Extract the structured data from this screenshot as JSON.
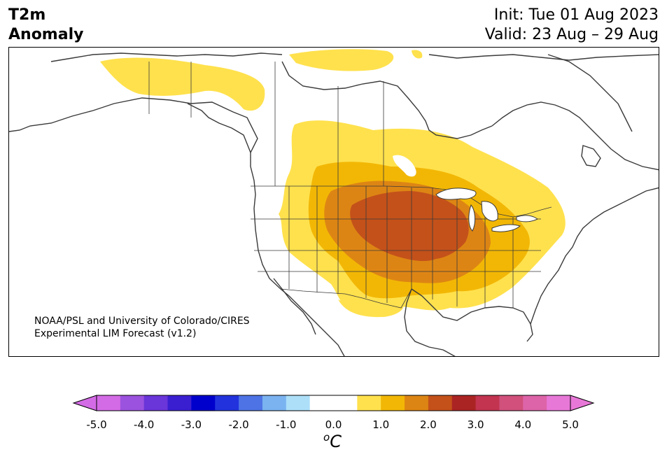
{
  "title": {
    "line1": "T2m",
    "line2": "Anomaly"
  },
  "subtitle": {
    "init": "Init: Tue 01 Aug 2023",
    "valid": "Valid: 23 Aug – 29 Aug"
  },
  "credit": {
    "line1": "NOAA/PSL and University of Colorado/CIRES",
    "line2": "Experimental LIM Forecast (v1.2)"
  },
  "colorbar": {
    "unit": "C",
    "unit_superscript": "o",
    "tick_labels": [
      "-5.0",
      "-4.0",
      "-3.0",
      "-2.0",
      "-1.0",
      "0.0",
      "1.0",
      "2.0",
      "3.0",
      "4.0",
      "5.0"
    ],
    "colors": [
      "#d46be6",
      "#9b52de",
      "#6a35d9",
      "#3a1fd1",
      "#0000cc",
      "#2233dd",
      "#4d73e5",
      "#7ab3f0",
      "#addff9",
      "#ffffff",
      "#ffffff",
      "#ffe14d",
      "#f2b705",
      "#dd8514",
      "#c4511a",
      "#ab2424",
      "#c23450",
      "#d1507c",
      "#dd64a8",
      "#e878d8"
    ],
    "extend_low_color": "#d46be6",
    "extend_high_color": "#e878d8"
  },
  "map": {
    "region": "North America",
    "anomaly_colors": {
      "c05": "#ffe14d",
      "c10": "#f2b705",
      "c15": "#dd8514",
      "c20": "#c4511a"
    }
  }
}
